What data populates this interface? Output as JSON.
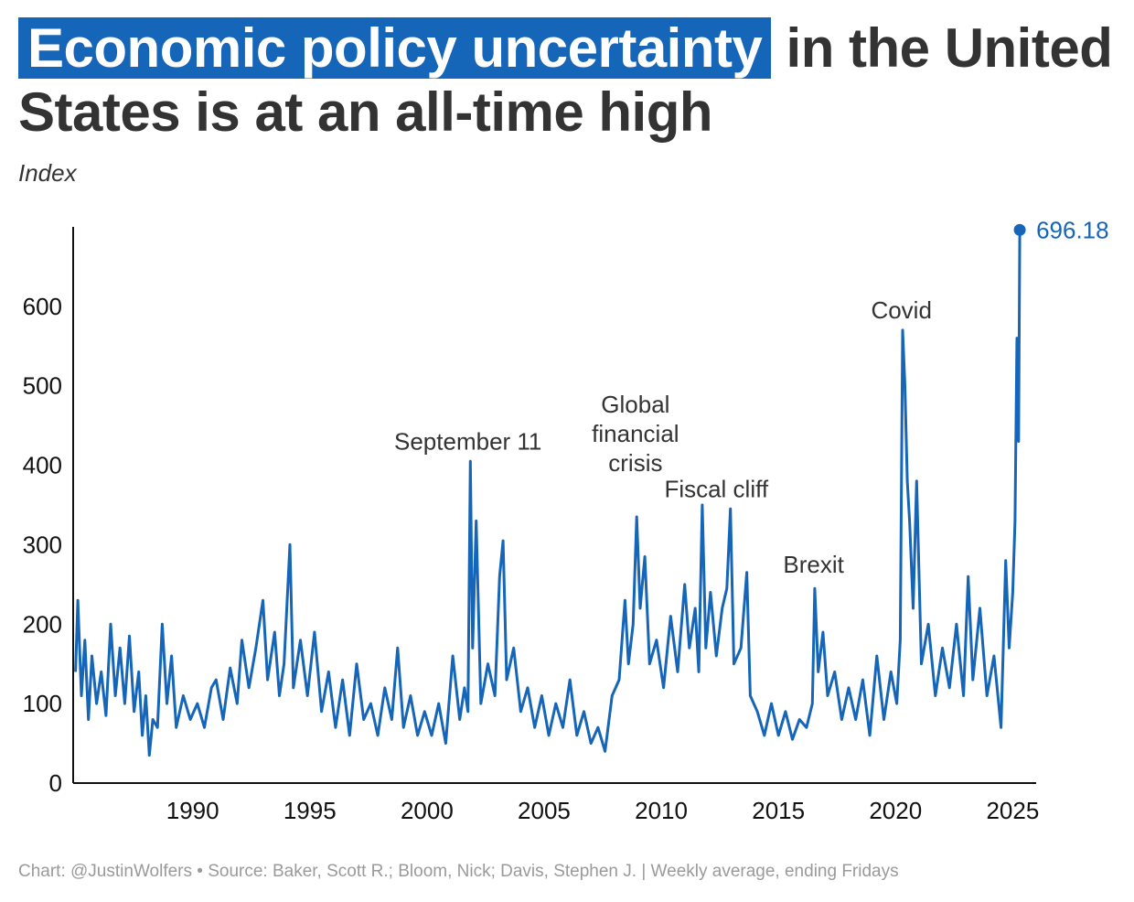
{
  "header": {
    "title_highlight": "Economic policy uncertainty",
    "title_rest": " in the United States is at an all-time high",
    "subtitle": "Index"
  },
  "footer": {
    "credit": "Chart: @JustinWolfers • Source: Baker, Scott R.; Bloom, Nick; Davis, Stephen J. | Weekly average, ending Fridays"
  },
  "colors": {
    "accent": "#1565b8",
    "text": "#333333",
    "axis": "#111111",
    "footer": "#9a9a9a"
  },
  "chart_data": {
    "type": "line",
    "title": "Economic policy uncertainty in the United States is at an all-time high",
    "ylabel": "Index",
    "xlabel": "",
    "xlim": [
      1984.9,
      2026.0
    ],
    "ylim": [
      0,
      700
    ],
    "grid": false,
    "x_ticks": [
      1990,
      1995,
      2000,
      2005,
      2010,
      2015,
      2020,
      2025
    ],
    "y_ticks": [
      0,
      100,
      200,
      300,
      400,
      500,
      600
    ],
    "series": [
      {
        "color": "#1565b8",
        "points": [
          [
            1985.0,
            140
          ],
          [
            1985.1,
            230
          ],
          [
            1985.25,
            110
          ],
          [
            1985.4,
            180
          ],
          [
            1985.55,
            80
          ],
          [
            1985.7,
            160
          ],
          [
            1985.9,
            100
          ],
          [
            1986.1,
            140
          ],
          [
            1986.3,
            85
          ],
          [
            1986.5,
            200
          ],
          [
            1986.7,
            110
          ],
          [
            1986.9,
            170
          ],
          [
            1987.1,
            100
          ],
          [
            1987.3,
            185
          ],
          [
            1987.5,
            90
          ],
          [
            1987.7,
            140
          ],
          [
            1987.85,
            60
          ],
          [
            1988.0,
            110
          ],
          [
            1988.15,
            35
          ],
          [
            1988.3,
            80
          ],
          [
            1988.5,
            70
          ],
          [
            1988.7,
            200
          ],
          [
            1988.9,
            100
          ],
          [
            1989.1,
            160
          ],
          [
            1989.3,
            70
          ],
          [
            1989.6,
            110
          ],
          [
            1989.9,
            80
          ],
          [
            1990.2,
            100
          ],
          [
            1990.5,
            70
          ],
          [
            1990.8,
            120
          ],
          [
            1991.0,
            130
          ],
          [
            1991.3,
            80
          ],
          [
            1991.6,
            145
          ],
          [
            1991.9,
            100
          ],
          [
            1992.1,
            180
          ],
          [
            1992.4,
            120
          ],
          [
            1992.7,
            170
          ],
          [
            1993.0,
            230
          ],
          [
            1993.2,
            130
          ],
          [
            1993.5,
            190
          ],
          [
            1993.7,
            110
          ],
          [
            1993.9,
            150
          ],
          [
            1994.15,
            300
          ],
          [
            1994.3,
            120
          ],
          [
            1994.6,
            180
          ],
          [
            1994.9,
            110
          ],
          [
            1995.2,
            190
          ],
          [
            1995.5,
            90
          ],
          [
            1995.8,
            140
          ],
          [
            1996.1,
            70
          ],
          [
            1996.4,
            130
          ],
          [
            1996.7,
            60
          ],
          [
            1997.0,
            150
          ],
          [
            1997.3,
            80
          ],
          [
            1997.6,
            100
          ],
          [
            1997.9,
            60
          ],
          [
            1998.2,
            120
          ],
          [
            1998.5,
            80
          ],
          [
            1998.75,
            170
          ],
          [
            1999.0,
            70
          ],
          [
            1999.3,
            110
          ],
          [
            1999.6,
            60
          ],
          [
            1999.9,
            90
          ],
          [
            2000.2,
            60
          ],
          [
            2000.5,
            100
          ],
          [
            2000.8,
            50
          ],
          [
            2001.1,
            160
          ],
          [
            2001.4,
            80
          ],
          [
            2001.6,
            120
          ],
          [
            2001.75,
            90
          ],
          [
            2001.85,
            405
          ],
          [
            2001.95,
            170
          ],
          [
            2002.1,
            330
          ],
          [
            2002.3,
            100
          ],
          [
            2002.6,
            150
          ],
          [
            2002.9,
            110
          ],
          [
            2003.1,
            260
          ],
          [
            2003.25,
            305
          ],
          [
            2003.4,
            130
          ],
          [
            2003.7,
            170
          ],
          [
            2004.0,
            90
          ],
          [
            2004.3,
            120
          ],
          [
            2004.6,
            70
          ],
          [
            2004.9,
            110
          ],
          [
            2005.2,
            60
          ],
          [
            2005.5,
            100
          ],
          [
            2005.8,
            70
          ],
          [
            2006.1,
            130
          ],
          [
            2006.4,
            60
          ],
          [
            2006.7,
            90
          ],
          [
            2007.0,
            50
          ],
          [
            2007.3,
            70
          ],
          [
            2007.6,
            40
          ],
          [
            2007.9,
            110
          ],
          [
            2008.2,
            130
          ],
          [
            2008.45,
            230
          ],
          [
            2008.6,
            150
          ],
          [
            2008.8,
            200
          ],
          [
            2008.95,
            335
          ],
          [
            2009.1,
            220
          ],
          [
            2009.3,
            285
          ],
          [
            2009.5,
            150
          ],
          [
            2009.8,
            180
          ],
          [
            2010.1,
            120
          ],
          [
            2010.4,
            210
          ],
          [
            2010.7,
            140
          ],
          [
            2011.0,
            250
          ],
          [
            2011.2,
            170
          ],
          [
            2011.45,
            220
          ],
          [
            2011.6,
            140
          ],
          [
            2011.75,
            350
          ],
          [
            2011.9,
            170
          ],
          [
            2012.1,
            240
          ],
          [
            2012.35,
            160
          ],
          [
            2012.6,
            220
          ],
          [
            2012.8,
            245
          ],
          [
            2012.95,
            345
          ],
          [
            2013.1,
            150
          ],
          [
            2013.4,
            170
          ],
          [
            2013.65,
            265
          ],
          [
            2013.8,
            110
          ],
          [
            2014.1,
            90
          ],
          [
            2014.4,
            60
          ],
          [
            2014.7,
            100
          ],
          [
            2015.0,
            60
          ],
          [
            2015.3,
            90
          ],
          [
            2015.6,
            55
          ],
          [
            2015.9,
            80
          ],
          [
            2016.2,
            70
          ],
          [
            2016.45,
            100
          ],
          [
            2016.55,
            245
          ],
          [
            2016.7,
            140
          ],
          [
            2016.9,
            190
          ],
          [
            2017.1,
            110
          ],
          [
            2017.4,
            140
          ],
          [
            2017.7,
            80
          ],
          [
            2018.0,
            120
          ],
          [
            2018.3,
            80
          ],
          [
            2018.6,
            130
          ],
          [
            2018.9,
            60
          ],
          [
            2019.2,
            160
          ],
          [
            2019.5,
            80
          ],
          [
            2019.8,
            140
          ],
          [
            2020.05,
            100
          ],
          [
            2020.2,
            180
          ],
          [
            2020.3,
            570
          ],
          [
            2020.4,
            500
          ],
          [
            2020.5,
            380
          ],
          [
            2020.6,
            330
          ],
          [
            2020.75,
            220
          ],
          [
            2020.9,
            380
          ],
          [
            2021.1,
            150
          ],
          [
            2021.4,
            200
          ],
          [
            2021.7,
            110
          ],
          [
            2022.0,
            170
          ],
          [
            2022.3,
            120
          ],
          [
            2022.6,
            200
          ],
          [
            2022.9,
            110
          ],
          [
            2023.1,
            260
          ],
          [
            2023.3,
            130
          ],
          [
            2023.6,
            220
          ],
          [
            2023.9,
            110
          ],
          [
            2024.2,
            160
          ],
          [
            2024.5,
            70
          ],
          [
            2024.7,
            280
          ],
          [
            2024.85,
            170
          ],
          [
            2025.0,
            240
          ],
          [
            2025.1,
            330
          ],
          [
            2025.18,
            560
          ],
          [
            2025.25,
            430
          ],
          [
            2025.3,
            696.18
          ]
        ]
      }
    ],
    "annotations": [
      {
        "label": "September 11",
        "x": 2001.75,
        "y": 430
      },
      {
        "label": "Global financial crisis",
        "lines": [
          "Global",
          "financial",
          "crisis"
        ],
        "x": 2008.9,
        "y": 440
      },
      {
        "label": "Fiscal cliff",
        "x": 2012.35,
        "y": 370
      },
      {
        "label": "Brexit",
        "x": 2016.5,
        "y": 275
      },
      {
        "label": "Covid",
        "x": 2020.25,
        "y": 595
      }
    ],
    "end_label": "696.18",
    "end_point": {
      "x": 2025.3,
      "y": 696.18
    }
  }
}
